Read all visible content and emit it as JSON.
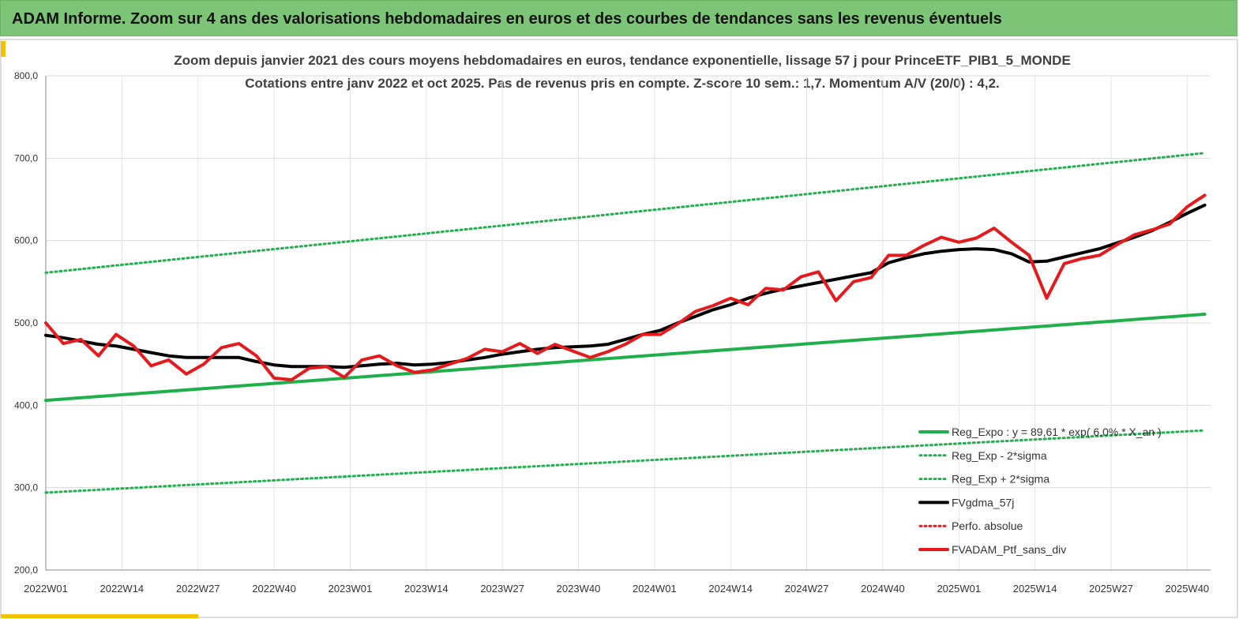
{
  "header": {
    "title": "ADAM Informe. Zoom sur 4 ans des valorisations hebdomadaires en euros et des courbes de tendances sans les revenus éventuels"
  },
  "chart_data": {
    "type": "line",
    "title": "Zoom depuis janvier 2021 des cours moyens hebdomadaires  en euros, tendance exponentielle, lissage 57 j pour PrinceETF_PIB1_5_MONDE",
    "subtitle": "Cotations entre janv 2022 et oct 2025. Pas de revenus pris en compte. Z-score 10 sem.: 1,7. Momentum A/V (20/0) : 4,2.",
    "xlim": [
      0,
      199
    ],
    "xticks": [
      {
        "value": 0,
        "label": "2022W01"
      },
      {
        "value": 13,
        "label": "2022W14"
      },
      {
        "value": 26,
        "label": "2022W27"
      },
      {
        "value": 39,
        "label": "2022W40"
      },
      {
        "value": 52,
        "label": "2023W01"
      },
      {
        "value": 65,
        "label": "2023W14"
      },
      {
        "value": 78,
        "label": "2023W27"
      },
      {
        "value": 91,
        "label": "2023W40"
      },
      {
        "value": 104,
        "label": "2024W01"
      },
      {
        "value": 117,
        "label": "2024W14"
      },
      {
        "value": 130,
        "label": "2024W27"
      },
      {
        "value": 143,
        "label": "2024W40"
      },
      {
        "value": 156,
        "label": "2025W01"
      },
      {
        "value": 169,
        "label": "2025W14"
      },
      {
        "value": 182,
        "label": "2025W27"
      },
      {
        "value": 195,
        "label": "2025W40"
      }
    ],
    "ylim": [
      200,
      800
    ],
    "yticks": [
      {
        "value": 200,
        "label": "200,0"
      },
      {
        "value": 300,
        "label": "300,0"
      },
      {
        "value": 400,
        "label": "400,0"
      },
      {
        "value": 500,
        "label": "500,0"
      },
      {
        "value": 600,
        "label": "600,0"
      },
      {
        "value": 700,
        "label": "700,0"
      },
      {
        "value": 800,
        "label": "800,0"
      }
    ],
    "grid": true,
    "legend": "lower right",
    "series": [
      {
        "name": "Reg_Expo : y = 89,61 * exp( 6,0% * X_an )",
        "color": "#1fb04c",
        "dashed": false,
        "x": [
          0,
          33,
          66,
          99,
          132,
          165,
          198
        ],
        "values": [
          406,
          423.4,
          440.8,
          458.3,
          475.7,
          493.1,
          510.5
        ]
      },
      {
        "name": "Reg_Exp - 2*sigma",
        "color": "#1fb04c",
        "dashed": true,
        "x": [
          0,
          33,
          66,
          99,
          132,
          165,
          198
        ],
        "values": [
          294,
          306.6,
          319.2,
          331.8,
          344.4,
          357,
          369.6
        ]
      },
      {
        "name": "Reg_Exp + 2*sigma",
        "color": "#1fb04c",
        "dashed": true,
        "x": [
          0,
          33,
          66,
          99,
          132,
          165,
          198
        ],
        "values": [
          561,
          585.2,
          609.4,
          633.7,
          657.9,
          682.1,
          706.3
        ]
      },
      {
        "name": "FVgdma_57j",
        "color": "#000000",
        "dashed": false,
        "x": [
          0,
          3,
          6,
          9,
          12,
          15,
          18,
          21,
          24,
          27,
          30,
          33,
          36,
          39,
          42,
          45,
          48,
          51,
          54,
          57,
          60,
          63,
          66,
          69,
          72,
          75,
          78,
          81,
          84,
          87,
          90,
          93,
          96,
          99,
          102,
          105,
          108,
          111,
          114,
          117,
          120,
          123,
          126,
          129,
          132,
          135,
          138,
          141,
          144,
          147,
          150,
          153,
          156,
          159,
          162,
          165,
          168,
          171,
          174,
          177,
          180,
          183,
          186,
          189,
          192,
          195,
          198
        ],
        "values": [
          485,
          482,
          478,
          474,
          472,
          468,
          464,
          460,
          458,
          458,
          458,
          458,
          453,
          449,
          447,
          447,
          447,
          446,
          448,
          450,
          451,
          449,
          450,
          452,
          455,
          458,
          462,
          465,
          468,
          470,
          471,
          472,
          474,
          480,
          486,
          491,
          500,
          508,
          516,
          522,
          530,
          536,
          541,
          545,
          549,
          553,
          557,
          561,
          573,
          579,
          584,
          587,
          589,
          590,
          589,
          584,
          574,
          575,
          580,
          585,
          590,
          597,
          604,
          612,
          622,
          633,
          643
        ]
      },
      {
        "name": "Perfo. absolue",
        "color": "#e41a1c",
        "dashed": true
      },
      {
        "name": "FVADAM_Ptf_sans_div",
        "color": "#e41a1c",
        "dashed": false,
        "x": [
          0,
          3,
          6,
          9,
          12,
          15,
          18,
          21,
          24,
          27,
          30,
          33,
          36,
          39,
          42,
          45,
          48,
          51,
          54,
          57,
          60,
          63,
          66,
          69,
          72,
          75,
          78,
          81,
          84,
          87,
          90,
          93,
          96,
          99,
          102,
          105,
          108,
          111,
          114,
          117,
          120,
          123,
          126,
          129,
          132,
          135,
          138,
          141,
          144,
          147,
          150,
          153,
          156,
          159,
          162,
          165,
          168,
          171,
          174,
          177,
          180,
          183,
          186,
          189,
          192,
          195,
          198
        ],
        "values": [
          500,
          475,
          480,
          460,
          486,
          472,
          448,
          455,
          438,
          450,
          470,
          475,
          460,
          433,
          431,
          445,
          447,
          434,
          455,
          460,
          448,
          440,
          443,
          450,
          457,
          468,
          465,
          475,
          463,
          474,
          466,
          458,
          465,
          474,
          486,
          486,
          499,
          514,
          521,
          530,
          522,
          542,
          540,
          556,
          562,
          527,
          550,
          555,
          582,
          582,
          594,
          604,
          598,
          603,
          615,
          598,
          582,
          530,
          572,
          578,
          582,
          595,
          607,
          613,
          620,
          641,
          655
        ]
      }
    ]
  }
}
